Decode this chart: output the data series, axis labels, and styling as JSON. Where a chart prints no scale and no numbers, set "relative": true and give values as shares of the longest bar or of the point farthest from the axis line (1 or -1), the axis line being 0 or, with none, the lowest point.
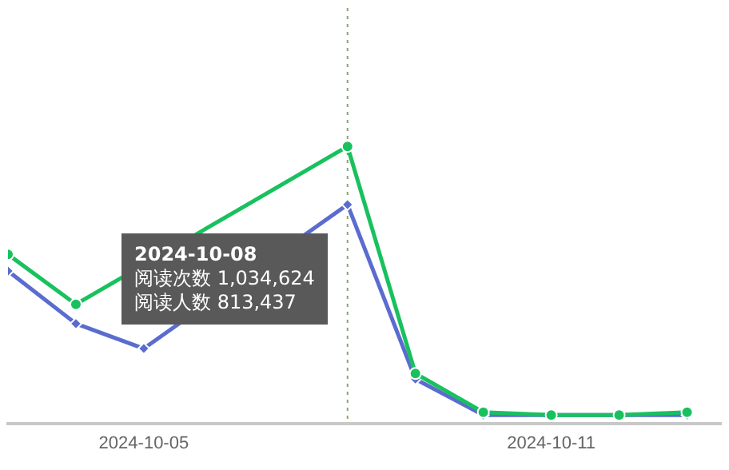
{
  "chart_data": {
    "type": "line",
    "relative": true,
    "x": [
      "2024-10-03",
      "2024-10-04",
      "2024-10-05",
      "2024-10-06",
      "2024-10-07",
      "2024-10-08",
      "2024-10-09",
      "2024-10-10",
      "2024-10-11",
      "2024-10-12",
      "2024-10-13"
    ],
    "xlim": [
      "2024-10-03",
      "2024-10-13T12:00"
    ],
    "xticks": [
      "2024-10-05",
      "2024-10-11"
    ],
    "legend": false,
    "tick_labels": "x",
    "line_style": "solid",
    "series": [
      {
        "color": "#19c15e",
        "marker": "circle",
        "values": [
          0.61,
          0.43,
          null,
          null,
          null,
          1,
          0.18,
          0.04,
          0.03,
          0.03,
          0.04
        ]
      },
      {
        "color": "#5b6ccf",
        "marker": "diamond",
        "values": [
          0.55,
          0.36,
          0.27,
          null,
          null,
          0.79,
          0.16,
          0.03,
          0.03,
          0.03,
          0.03
        ]
      }
    ],
    "ref_lines": [
      {
        "axis": "x",
        "value": "2024-10-08",
        "color": "#8aa86a",
        "line_style": "dotted"
      }
    ],
    "annotations": [
      "2024-10-08",
      "阅读次数 1,034,624",
      "阅读人数 813,437"
    ]
  }
}
